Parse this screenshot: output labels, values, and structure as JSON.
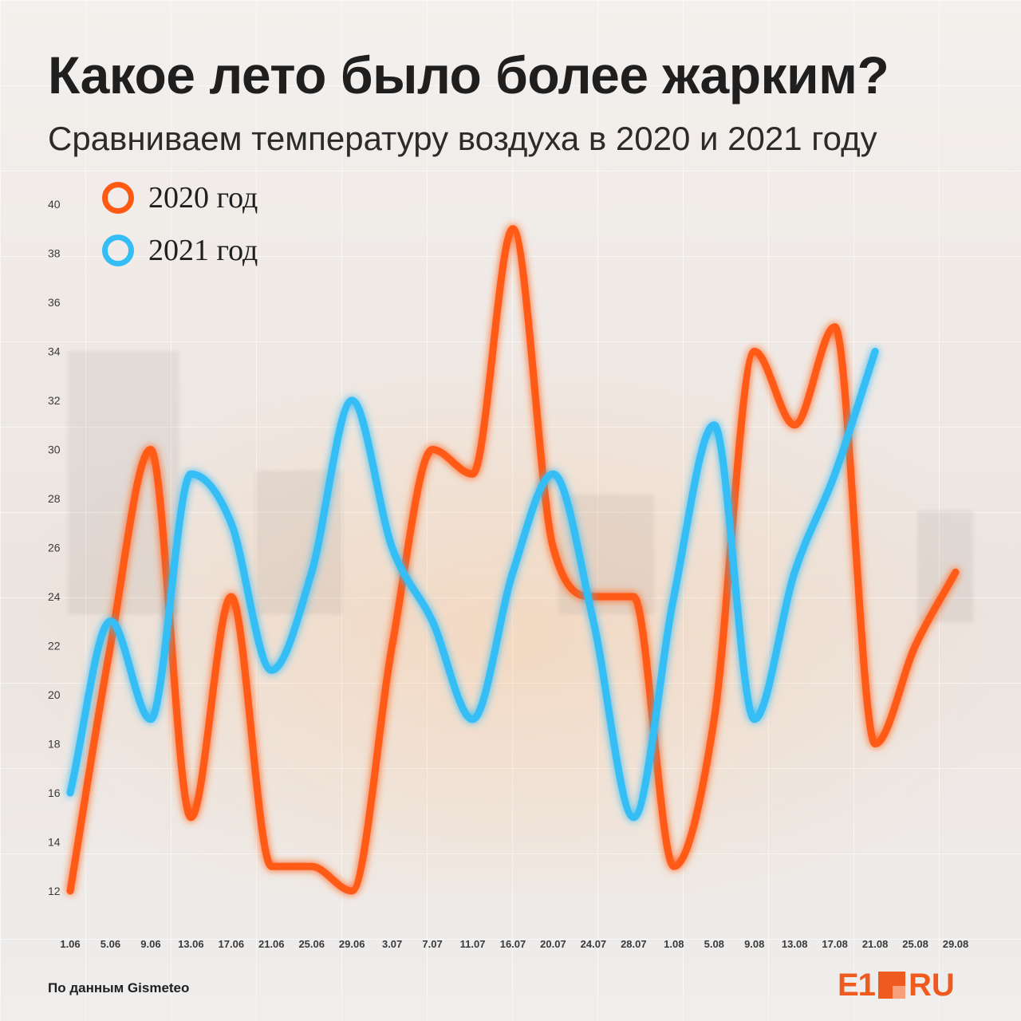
{
  "title": "Какое лето было более жарким?",
  "subtitle": "Сравниваем температуру воздуха в 2020 и 2021 году",
  "source": "По данным Gismeteo",
  "logo": {
    "main": "E1",
    "suffix": "RU"
  },
  "colors": {
    "series_2020": "#ff5a14",
    "series_2021": "#35bdf5",
    "text": "#1f1f1f"
  },
  "chart_data": {
    "type": "line",
    "title": "",
    "xlabel": "",
    "ylabel": "",
    "ylim": [
      12,
      40
    ],
    "yticks": [
      12,
      14,
      16,
      18,
      20,
      22,
      24,
      26,
      28,
      30,
      32,
      34,
      36,
      38,
      40
    ],
    "x": [
      "1.06",
      "5.06",
      "9.06",
      "13.06",
      "17.06",
      "21.06",
      "25.06",
      "29.06",
      "3.07",
      "7.07",
      "11.07",
      "16.07",
      "20.07",
      "24.07",
      "28.07",
      "1.08",
      "5.08",
      "9.08",
      "13.08",
      "17.08",
      "21.08",
      "25.08",
      "29.08"
    ],
    "grid": false,
    "legend_position": "top-left",
    "series": [
      {
        "name": "2020 год",
        "values": [
          12,
          22,
          30,
          15,
          24,
          13,
          13,
          12,
          22,
          30,
          29,
          39,
          26,
          24,
          24,
          13,
          19,
          34,
          31,
          35,
          18,
          22,
          25
        ]
      },
      {
        "name": "2021 год",
        "values": [
          16,
          23,
          19,
          29,
          27,
          21,
          25,
          32,
          26,
          23,
          19,
          25,
          29,
          23,
          15,
          24,
          31,
          19,
          25,
          29,
          34,
          null,
          null
        ]
      }
    ]
  }
}
